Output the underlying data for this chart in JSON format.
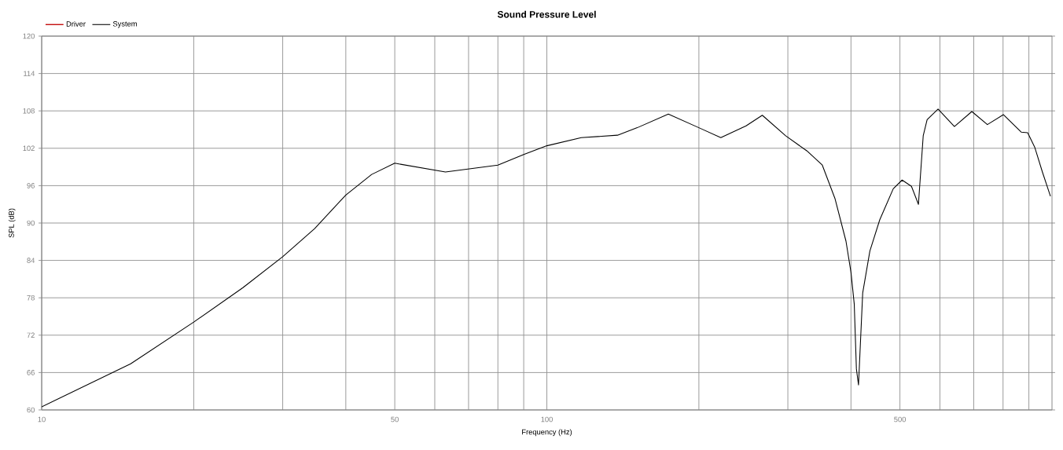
{
  "chart_data": {
    "type": "line",
    "title": "Sound Pressure Level",
    "xlabel": "Frequency (Hz)",
    "ylabel": "SPL (dB)",
    "log": "x",
    "grid": true,
    "legend": "top left",
    "xlim": [
      10,
      1000
    ],
    "ylim": [
      60,
      120
    ],
    "xticks": [
      10,
      {
        "value": 20,
        "label": null
      },
      {
        "value": 30,
        "label": null
      },
      {
        "value": 40,
        "label": null
      },
      50,
      {
        "value": 60,
        "label": null
      },
      {
        "value": 70,
        "label": null
      },
      {
        "value": 80,
        "label": null
      },
      {
        "value": 90,
        "label": null
      },
      100,
      {
        "value": 200,
        "label": null
      },
      {
        "value": 300,
        "label": null
      },
      {
        "value": 400,
        "label": null
      },
      500,
      {
        "value": 600,
        "label": null
      },
      {
        "value": 700,
        "label": null
      },
      {
        "value": 800,
        "label": null
      },
      {
        "value": 900,
        "label": null
      }
    ],
    "yticks": [
      60,
      66,
      72,
      78,
      84,
      90,
      96,
      102,
      108,
      114,
      120
    ],
    "x": [
      10,
      15,
      20,
      25,
      30,
      34.7,
      40,
      45,
      50,
      63,
      80,
      90,
      100,
      117,
      138,
      151,
      174,
      200,
      221,
      248,
      267,
      297,
      327,
      351,
      372,
      391,
      400,
      406,
      410,
      414,
      422,
      436,
      456,
      485,
      505,
      527,
      544,
      556,
      566,
      595,
      641,
      694,
      745,
      801,
      869,
      895,
      924,
      958,
      993
    ],
    "series": [
      {
        "name": "Driver",
        "color": "#c00000",
        "values": [
          null,
          null,
          null,
          null,
          null,
          null,
          null,
          null,
          null,
          null,
          null,
          null,
          null,
          null,
          null,
          null,
          null,
          null,
          null,
          null,
          null,
          null,
          null,
          null,
          null,
          null,
          null,
          null,
          null,
          null,
          null,
          null,
          null,
          null,
          null,
          null,
          null,
          null,
          null,
          null,
          null,
          null,
          null,
          null,
          null,
          null,
          null,
          null,
          null
        ]
      },
      {
        "name": "System",
        "color": "#000000",
        "values": [
          60.5,
          67.4,
          74.1,
          79.6,
          84.6,
          89.1,
          94.5,
          97.8,
          99.6,
          98.2,
          99.3,
          101.0,
          102.4,
          103.7,
          104.1,
          105.3,
          107.5,
          105.3,
          103.7,
          105.6,
          107.3,
          104.0,
          101.6,
          99.3,
          93.9,
          87.1,
          82.1,
          77.0,
          66.6,
          64.0,
          78.8,
          85.5,
          90.5,
          95.5,
          96.9,
          95.9,
          93.0,
          104.0,
          106.6,
          108.3,
          105.5,
          107.9,
          105.8,
          107.4,
          104.6,
          104.5,
          102.2,
          98.1,
          94.3
        ]
      }
    ]
  }
}
